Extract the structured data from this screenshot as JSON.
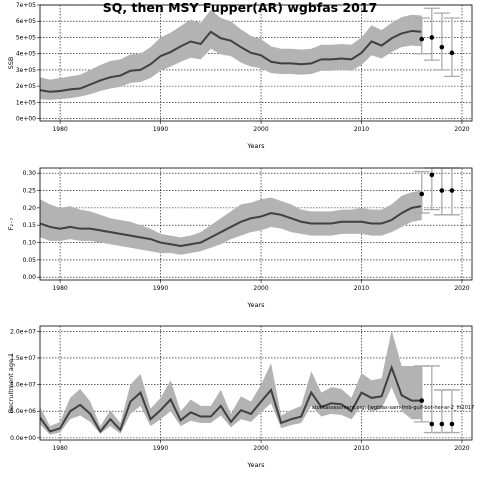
{
  "title": "SQ, then MSY Fupper(AR) wgbfas 2017",
  "chart_data": [
    {
      "type": "line",
      "xlabel": "Years",
      "ylabel": "SSB",
      "xlim": [
        1978,
        2021
      ],
      "ylim": [
        -15000,
        700000
      ],
      "xticks": [
        "1980",
        "1990",
        "2000",
        "2010",
        "2020"
      ],
      "yticks": [
        "0e+00",
        "1e+05",
        "2e+05",
        "3e+05",
        "4e+05",
        "5e+05",
        "6e+05",
        "7e+05"
      ],
      "grid": true,
      "x": [
        1978,
        1979,
        1980,
        1981,
        1982,
        1983,
        1984,
        1985,
        1986,
        1987,
        1988,
        1989,
        1990,
        1991,
        1992,
        1993,
        1994,
        1995,
        1996,
        1997,
        1998,
        1999,
        2000,
        2001,
        2002,
        2003,
        2004,
        2005,
        2006,
        2007,
        2008,
        2009,
        2010,
        2011,
        2012,
        2013,
        2014,
        2015,
        2016
      ],
      "median": [
        175000,
        165000,
        170000,
        180000,
        185000,
        210000,
        235000,
        255000,
        265000,
        295000,
        300000,
        335000,
        385000,
        410000,
        445000,
        475000,
        460000,
        535000,
        495000,
        480000,
        440000,
        405000,
        390000,
        350000,
        340000,
        340000,
        335000,
        340000,
        365000,
        365000,
        370000,
        365000,
        405000,
        475000,
        450000,
        495000,
        525000,
        540000,
        535000
      ],
      "lower": [
        120000,
        115000,
        120000,
        125000,
        135000,
        150000,
        170000,
        185000,
        195000,
        220000,
        225000,
        250000,
        295000,
        320000,
        350000,
        375000,
        365000,
        430000,
        395000,
        385000,
        345000,
        320000,
        310000,
        280000,
        275000,
        275000,
        270000,
        275000,
        295000,
        295000,
        300000,
        295000,
        330000,
        390000,
        370000,
        410000,
        440000,
        450000,
        445000
      ],
      "upper": [
        255000,
        240000,
        250000,
        260000,
        270000,
        300000,
        330000,
        355000,
        365000,
        395000,
        400000,
        440000,
        500000,
        530000,
        570000,
        610000,
        590000,
        670000,
        620000,
        600000,
        550000,
        510000,
        490000,
        445000,
        430000,
        430000,
        425000,
        430000,
        455000,
        455000,
        460000,
        455000,
        500000,
        575000,
        545000,
        590000,
        625000,
        640000,
        635000
      ],
      "projection": {
        "x": [
          2016,
          2017,
          2018,
          2019
        ],
        "median": [
          490000,
          500000,
          440000,
          405000
        ],
        "lower": [
          400000,
          360000,
          300000,
          260000
        ],
        "upper": [
          620000,
          680000,
          650000,
          620000
        ]
      }
    },
    {
      "type": "line",
      "xlabel": "Years",
      "ylabel": "F₂₋₇",
      "xlim": [
        1978,
        2021
      ],
      "ylim": [
        -0.008,
        0.315
      ],
      "xticks": [
        "1980",
        "1990",
        "2000",
        "2010",
        "2020"
      ],
      "yticks": [
        "0.00",
        "0.05",
        "0.10",
        "0.15",
        "0.20",
        "0.25",
        "0.30"
      ],
      "grid": true,
      "x": [
        1978,
        1979,
        1980,
        1981,
        1982,
        1983,
        1984,
        1985,
        1986,
        1987,
        1988,
        1989,
        1990,
        1991,
        1992,
        1993,
        1994,
        1995,
        1996,
        1997,
        1998,
        1999,
        2000,
        2001,
        2002,
        2003,
        2004,
        2005,
        2006,
        2007,
        2008,
        2009,
        2010,
        2011,
        2012,
        2013,
        2014,
        2015,
        2016
      ],
      "median": [
        0.155,
        0.145,
        0.14,
        0.145,
        0.14,
        0.14,
        0.135,
        0.13,
        0.125,
        0.12,
        0.115,
        0.11,
        0.1,
        0.095,
        0.09,
        0.095,
        0.1,
        0.115,
        0.13,
        0.145,
        0.16,
        0.17,
        0.175,
        0.185,
        0.18,
        0.17,
        0.16,
        0.155,
        0.155,
        0.155,
        0.16,
        0.16,
        0.16,
        0.155,
        0.155,
        0.165,
        0.185,
        0.2,
        0.205
      ],
      "lower": [
        0.115,
        0.105,
        0.105,
        0.11,
        0.105,
        0.105,
        0.1,
        0.095,
        0.09,
        0.085,
        0.08,
        0.075,
        0.07,
        0.07,
        0.065,
        0.07,
        0.075,
        0.085,
        0.095,
        0.11,
        0.12,
        0.13,
        0.135,
        0.145,
        0.14,
        0.13,
        0.125,
        0.12,
        0.12,
        0.12,
        0.125,
        0.125,
        0.125,
        0.12,
        0.12,
        0.13,
        0.145,
        0.16,
        0.165
      ],
      "upper": [
        0.225,
        0.21,
        0.2,
        0.205,
        0.195,
        0.19,
        0.18,
        0.17,
        0.165,
        0.16,
        0.15,
        0.14,
        0.125,
        0.12,
        0.115,
        0.12,
        0.13,
        0.15,
        0.17,
        0.19,
        0.21,
        0.215,
        0.225,
        0.23,
        0.22,
        0.21,
        0.195,
        0.19,
        0.19,
        0.19,
        0.195,
        0.195,
        0.2,
        0.195,
        0.195,
        0.21,
        0.235,
        0.245,
        0.25
      ],
      "projection": {
        "x": [
          2016,
          2017,
          2018,
          2019
        ],
        "median": [
          0.24,
          0.295,
          0.25,
          0.25
        ],
        "lower": [
          0.185,
          0.195,
          0.18,
          0.18
        ],
        "upper": [
          0.305,
          0.315,
          0.315,
          0.315
        ]
      }
    },
    {
      "type": "line",
      "xlabel": "Years",
      "ylabel": "Recruitment age 1",
      "xlim": [
        1978,
        2021
      ],
      "ylim": [
        -400000,
        21000000
      ],
      "xticks": [
        "1980",
        "1990",
        "2000",
        "2010",
        "2020"
      ],
      "yticks": [
        "0.0e+00",
        "5.0e+06",
        "1.0e+07",
        "1.5e+07",
        "2.0e+07"
      ],
      "grid": true,
      "annotation": "stockassessment.org, [wgbfas-sam-fmb-gulf-bot-her-ar-2_fit2017",
      "x": [
        1978,
        1979,
        1980,
        1981,
        1982,
        1983,
        1984,
        1985,
        1986,
        1987,
        1988,
        1989,
        1990,
        1991,
        1992,
        1993,
        1994,
        1995,
        1996,
        1997,
        1998,
        1999,
        2000,
        2001,
        2002,
        2003,
        2004,
        2005,
        2006,
        2007,
        2008,
        2009,
        2010,
        2011,
        2012,
        2013,
        2014,
        2015,
        2016
      ],
      "median": [
        3800000,
        1200000,
        1800000,
        5000000,
        6200000,
        4500000,
        1200000,
        3500000,
        1500000,
        6800000,
        8500000,
        3500000,
        5200000,
        7200000,
        3300000,
        4800000,
        4000000,
        4000000,
        6000000,
        3000000,
        5200000,
        4500000,
        6800000,
        9000000,
        2800000,
        3500000,
        4000000,
        8500000,
        5800000,
        6500000,
        6300000,
        5000000,
        8500000,
        7500000,
        7800000,
        13200000,
        8000000,
        7000000,
        7000000
      ],
      "lower": [
        2500000,
        600000,
        1000000,
        3500000,
        4200000,
        3000000,
        800000,
        2200000,
        800000,
        4500000,
        6000000,
        2200000,
        3500000,
        5000000,
        2200000,
        3200000,
        2800000,
        2800000,
        4200000,
        2000000,
        3500000,
        3000000,
        4800000,
        6500000,
        1800000,
        2400000,
        2800000,
        6000000,
        4000000,
        4500000,
        4300000,
        3500000,
        6000000,
        5000000,
        5500000,
        9500000,
        5000000,
        3500000,
        3500000
      ],
      "upper": [
        5800000,
        2200000,
        3000000,
        7500000,
        9200000,
        6800000,
        2200000,
        5200000,
        2800000,
        10000000,
        12000000,
        5500000,
        7500000,
        10800000,
        5000000,
        7200000,
        6000000,
        6000000,
        9000000,
        4500000,
        7800000,
        6800000,
        10000000,
        14000000,
        4200000,
        5200000,
        6000000,
        12500000,
        8500000,
        9500000,
        9200000,
        7500000,
        12200000,
        10800000,
        11200000,
        20200000,
        13500000,
        13500000,
        13500000
      ],
      "projection": {
        "x": [
          2016,
          2017,
          2018,
          2019
        ],
        "median": [
          7000000,
          2600000,
          2600000,
          2600000
        ],
        "lower": [
          3000000,
          1000000,
          1000000,
          1000000
        ],
        "upper": [
          13500000,
          13500000,
          9000000,
          9000000
        ]
      }
    }
  ]
}
